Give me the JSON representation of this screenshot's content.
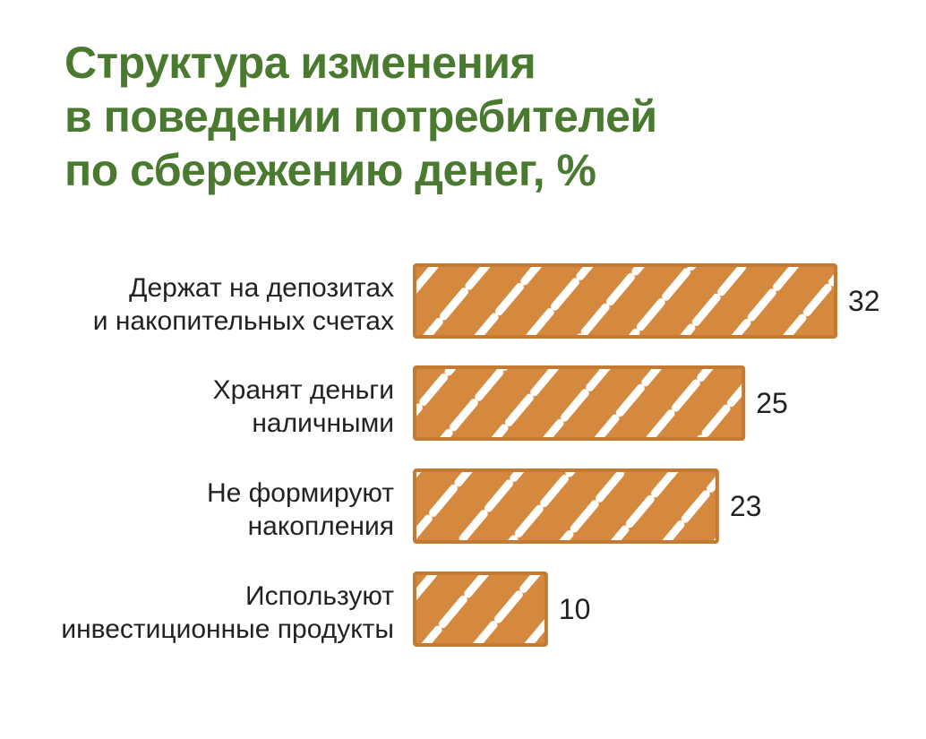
{
  "title_lines": [
    "Структура изменения",
    "в поведении потребителей",
    "по сбережению денег, %"
  ],
  "colors": {
    "title": "#4a7a2f",
    "bar_fill": "#d5893f",
    "bar_outline": "#c47a30",
    "text": "#222222"
  },
  "chart_data": {
    "type": "bar",
    "orientation": "horizontal",
    "title": "Структура изменения в поведении потребителей по сбережению денег, %",
    "categories": [
      [
        "Держат на депозитах",
        "и накопительных счетах"
      ],
      [
        "Хранят деньги",
        "наличными"
      ],
      [
        "Не формируют",
        "накопления"
      ],
      [
        "Используют",
        "инвестиционные продукты"
      ]
    ],
    "values": [
      32,
      25,
      23,
      10
    ],
    "xlim": [
      0,
      32
    ],
    "grid": false,
    "legend": "none"
  }
}
